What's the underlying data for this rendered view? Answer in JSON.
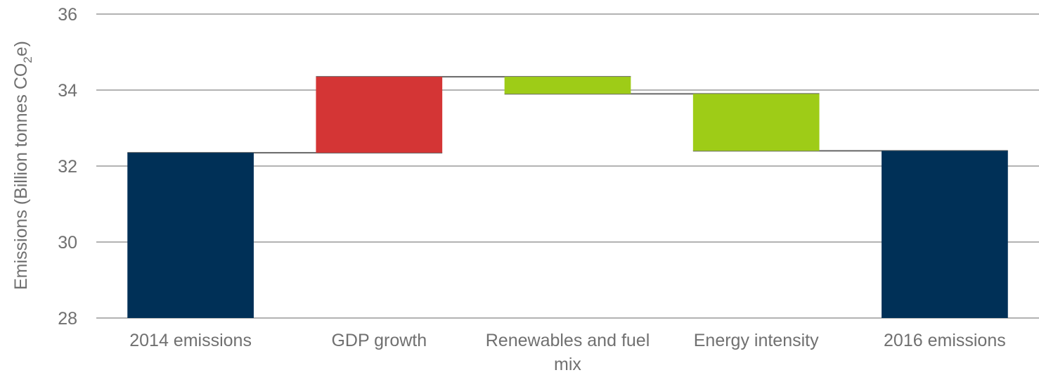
{
  "chart_data": {
    "type": "bar",
    "subtype": "waterfall",
    "categories": [
      "2014 emissions",
      "GDP growth",
      "Renewables and fuel mix",
      "Energy intensity",
      "2016 emissions"
    ],
    "bars": [
      {
        "category": "2014 emissions",
        "start": 28,
        "end": 32.35,
        "kind": "total"
      },
      {
        "category": "GDP growth",
        "start": 32.35,
        "end": 34.35,
        "kind": "increase"
      },
      {
        "category": "Renewables and fuel mix",
        "start": 34.35,
        "end": 33.9,
        "kind": "decrease"
      },
      {
        "category": "Energy intensity",
        "start": 33.9,
        "end": 32.4,
        "kind": "decrease"
      },
      {
        "category": "2016 emissions",
        "start": 28,
        "end": 32.4,
        "kind": "total"
      }
    ],
    "ylabel": {
      "main": "Emissions (Billion tonnes CO",
      "sub": "2",
      "tail": "e)"
    },
    "ylim": [
      28,
      36
    ],
    "yticks": [
      28,
      30,
      32,
      34,
      36
    ],
    "grid": true,
    "colors": {
      "total": "#003057",
      "increase": "#d43535",
      "decrease": "#9ecc17",
      "grid": "#b3b3b3",
      "connector": "#666666",
      "text": "#707070"
    }
  }
}
